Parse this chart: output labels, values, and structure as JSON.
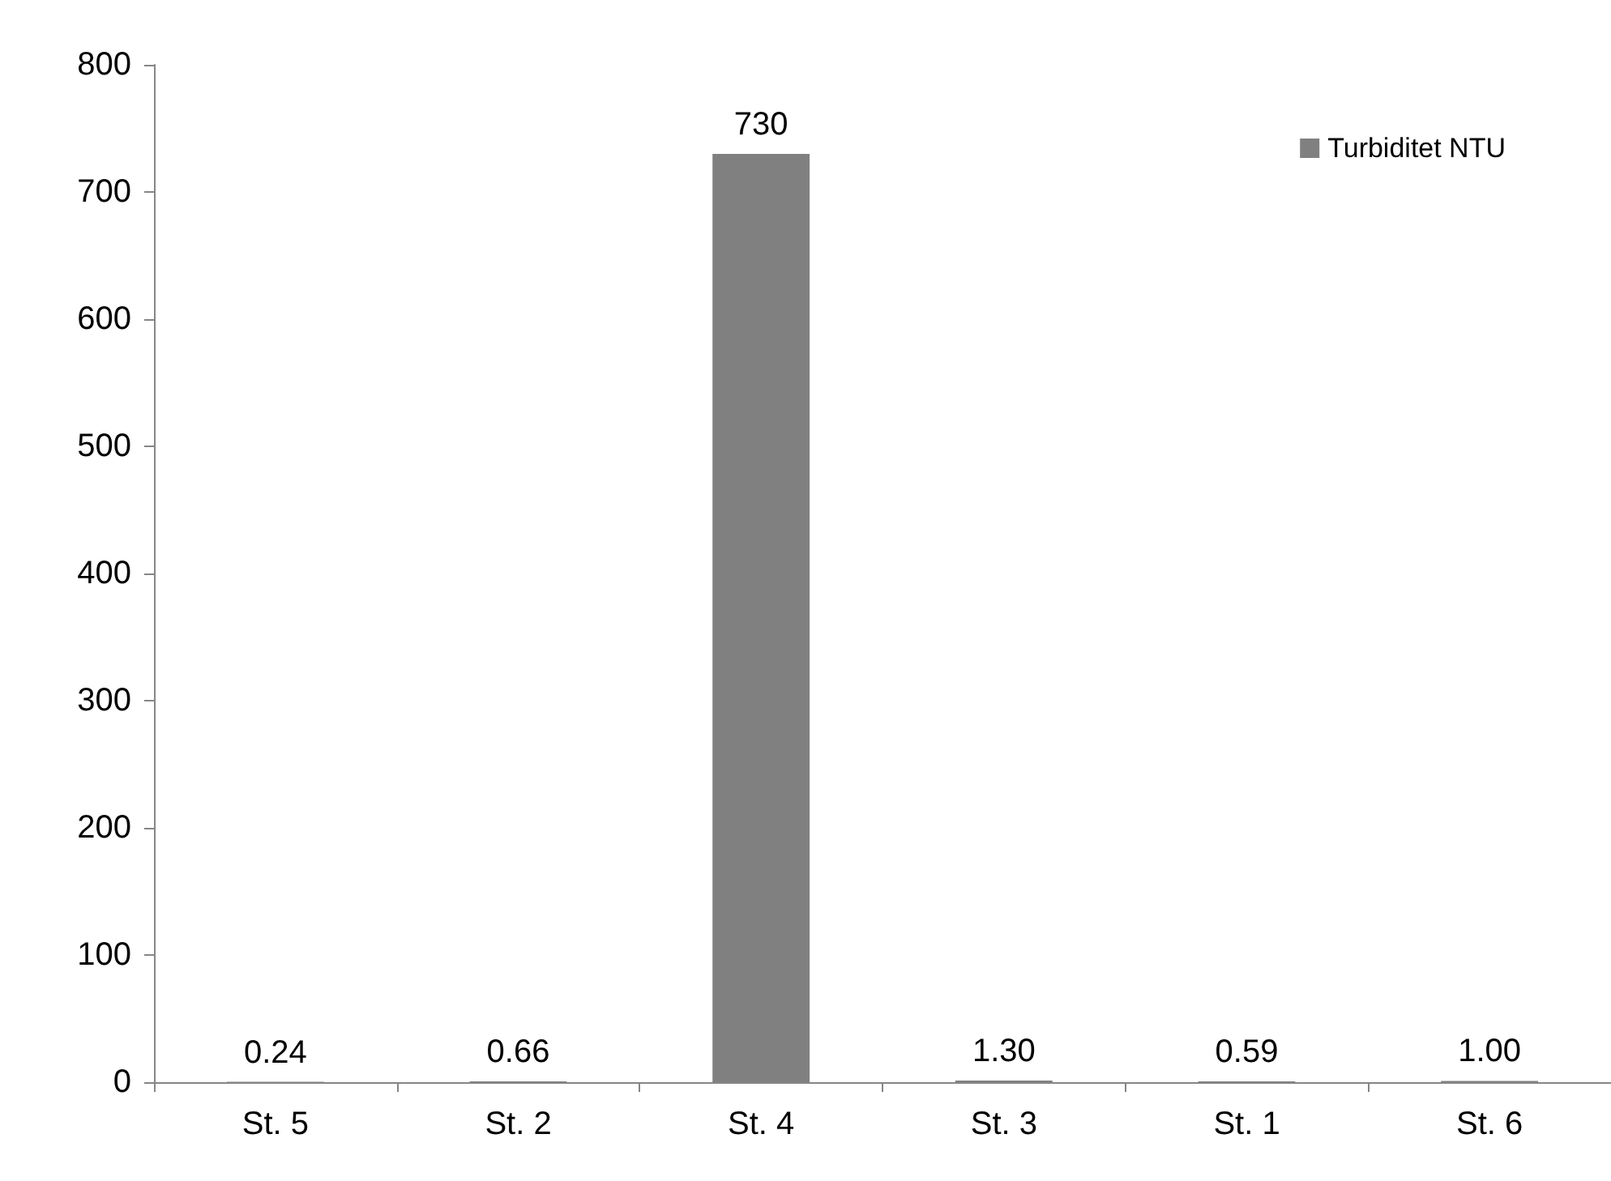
{
  "chart_data": {
    "type": "bar",
    "categories": [
      "St. 5",
      "St. 2",
      "St. 4",
      "St. 3",
      "St. 1",
      "St. 6"
    ],
    "series": [
      {
        "name": "Turbiditet NTU",
        "color": "#808080",
        "values": [
          0.24,
          0.66,
          730,
          1.3,
          0.59,
          1.0
        ],
        "value_labels": [
          "0.24",
          "0.66",
          "730",
          "1.30",
          "0.59",
          "1.00"
        ]
      }
    ],
    "ylim": [
      0,
      800
    ],
    "yticks": [
      0,
      100,
      200,
      300,
      400,
      500,
      600,
      700,
      800
    ],
    "grid": false,
    "legend": "top right"
  }
}
